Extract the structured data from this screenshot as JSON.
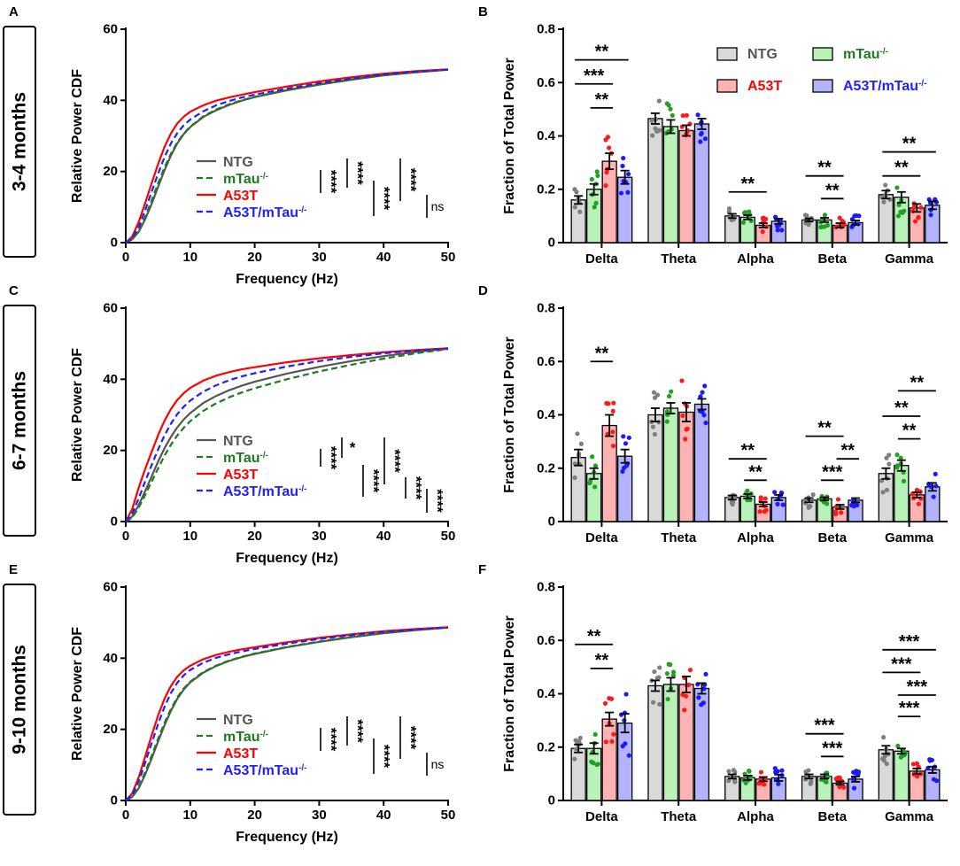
{
  "groups": [
    {
      "name": "NTG",
      "color": "#555555",
      "fill": "#d9d9d9",
      "dot": "#7f7f7f"
    },
    {
      "name": "mTau-/-",
      "base": "mTau",
      "sup": "-/-",
      "color": "#1f7a1f",
      "fill": "#b9f2b9",
      "dot": "#22a022"
    },
    {
      "name": "A53T",
      "color": "#ff0000",
      "fill": "#ffb3b3",
      "dot": "#ff1a1a"
    },
    {
      "name": "A53T/mTau-/-",
      "base": "A53T/mTau",
      "sup": "-/-",
      "color": "#1f1fff",
      "fill": "#b3b3ff",
      "dot": "#1a1aff"
    }
  ],
  "rows": [
    {
      "age_label": "3-4 months",
      "cdf_panel": "A",
      "bar_panel": "B"
    },
    {
      "age_label": "6-7 months",
      "cdf_panel": "C",
      "bar_panel": "D"
    },
    {
      "age_label": "9-10 months",
      "cdf_panel": "E",
      "bar_panel": "F"
    }
  ],
  "chart_data": [
    {
      "panel": "A",
      "type": "line",
      "xlabel": "Frequency (Hz)",
      "ylabel": "Relative Power CDF",
      "xlim": [
        0,
        50
      ],
      "ylim": [
        0,
        60
      ],
      "xticks": [
        0,
        10,
        20,
        30,
        40,
        50
      ],
      "yticks": [
        0,
        20,
        40,
        60
      ],
      "x": [
        0,
        1,
        2,
        3,
        4,
        5,
        6,
        7,
        8,
        9,
        10,
        12,
        14,
        16,
        18,
        20,
        25,
        30,
        35,
        40,
        45,
        50
      ],
      "series": [
        {
          "name": "NTG",
          "values": [
            0,
            0.9,
            3,
            6.5,
            10.8,
            15.6,
            20.3,
            24.5,
            27.9,
            30.5,
            32.5,
            35.3,
            37.2,
            38.7,
            39.9,
            40.9,
            42.8,
            44.4,
            45.8,
            47,
            47.9,
            48.6
          ]
        },
        {
          "name": "mTau-/-",
          "values": [
            0,
            1,
            3.5,
            7.3,
            11.8,
            16.6,
            21.1,
            25,
            28.2,
            30.7,
            32.6,
            35.5,
            37.4,
            38.9,
            40,
            41,
            42.9,
            44.5,
            45.9,
            47.1,
            48,
            48.6
          ]
        },
        {
          "name": "A53T",
          "values": [
            0,
            1.7,
            5.8,
            11,
            16.6,
            22,
            26.9,
            30.7,
            33.5,
            35.4,
            36.8,
            38.6,
            39.9,
            40.8,
            41.6,
            42.3,
            43.9,
            45.3,
            46.5,
            47.5,
            48.2,
            48.7
          ]
        },
        {
          "name": "A53T/mTau-/-",
          "values": [
            0,
            1.3,
            4.4,
            9,
            14.2,
            19.3,
            24,
            27.9,
            30.8,
            33,
            34.6,
            36.9,
            38.6,
            39.8,
            40.8,
            41.6,
            43.3,
            44.8,
            46.1,
            47.3,
            48.1,
            48.7
          ]
        }
      ],
      "stats": [
        {
          "label": "****",
          "pos": 0
        },
        {
          "label": "****",
          "pos": 1
        },
        {
          "label": "****",
          "pos": 2
        },
        {
          "label": "****",
          "pos": 3
        },
        {
          "label": "ns",
          "pos": 4
        }
      ]
    },
    {
      "panel": "B",
      "type": "bar",
      "ylabel": "Fraction of Total Power",
      "ylim": [
        0,
        0.8
      ],
      "yticks": [
        0,
        0.2,
        0.4,
        0.6,
        0.8
      ],
      "categories": [
        "Delta",
        "Theta",
        "Alpha",
        "Beta",
        "Gamma"
      ],
      "series": [
        {
          "name": "NTG",
          "values": [
            0.16,
            0.465,
            0.1,
            0.085,
            0.18
          ],
          "sem": [
            0.015,
            0.02,
            0.008,
            0.006,
            0.015
          ]
        },
        {
          "name": "mTau-/-",
          "values": [
            0.2,
            0.435,
            0.095,
            0.085,
            0.17
          ],
          "sem": [
            0.02,
            0.025,
            0.008,
            0.008,
            0.02
          ]
        },
        {
          "name": "A53T",
          "values": [
            0.305,
            0.42,
            0.065,
            0.065,
            0.13
          ],
          "sem": [
            0.03,
            0.02,
            0.008,
            0.008,
            0.015
          ]
        },
        {
          "name": "A53T/mTau-/-",
          "values": [
            0.245,
            0.445,
            0.08,
            0.075,
            0.14
          ],
          "sem": [
            0.025,
            0.02,
            0.01,
            0.008,
            0.015
          ]
        }
      ],
      "significance": [
        {
          "label": "**",
          "cat": 0,
          "from": 0,
          "to": 3,
          "y": 0.685
        },
        {
          "label": "***",
          "cat": 0,
          "from": 0,
          "to": 2,
          "y": 0.595
        },
        {
          "label": "**",
          "cat": 0,
          "from": 1,
          "to": 2,
          "y": 0.505
        },
        {
          "label": "**",
          "cat": 2,
          "from": 0,
          "to": 2,
          "y": 0.19
        },
        {
          "label": "**",
          "cat": 3,
          "from": 0,
          "to": 2,
          "y": 0.25
        },
        {
          "label": "**",
          "cat": 3,
          "from": 1,
          "to": 2,
          "y": 0.165
        },
        {
          "label": "**",
          "cat": 4,
          "from": 0,
          "to": 3,
          "y": 0.34
        },
        {
          "label": "**",
          "cat": 4,
          "from": 0,
          "to": 2,
          "y": 0.25
        }
      ]
    },
    {
      "panel": "C",
      "type": "line",
      "xlabel": "Frequency (Hz)",
      "ylabel": "Relative Power CDF",
      "xlim": [
        0,
        50
      ],
      "ylim": [
        0,
        60
      ],
      "xticks": [
        0,
        10,
        20,
        30,
        40,
        50
      ],
      "yticks": [
        0,
        20,
        40,
        60
      ],
      "x": [
        0,
        1,
        2,
        3,
        4,
        5,
        6,
        7,
        8,
        9,
        10,
        12,
        14,
        16,
        18,
        20,
        25,
        30,
        35,
        40,
        45,
        50
      ],
      "series": [
        {
          "name": "NTG",
          "values": [
            0,
            1.4,
            4.6,
            8.5,
            12.6,
            16.8,
            20.6,
            23.8,
            26.5,
            28.7,
            30.5,
            33.3,
            35.3,
            36.9,
            38.2,
            39.3,
            41.6,
            43.5,
            45.1,
            46.5,
            47.7,
            48.6
          ]
        },
        {
          "name": "mTau-/-",
          "values": [
            0,
            1.1,
            3.9,
            7.4,
            11.1,
            14.9,
            18.5,
            21.6,
            24.2,
            26.4,
            28.2,
            31.1,
            33.2,
            34.9,
            36.3,
            37.5,
            40,
            42.2,
            44.1,
            45.8,
            47.3,
            48.5
          ]
        },
        {
          "name": "A53T",
          "values": [
            0,
            3.5,
            9.5,
            14.7,
            19.5,
            24.2,
            28.3,
            31.6,
            34.2,
            36.1,
            37.6,
            39.6,
            41,
            42,
            42.8,
            43.4,
            44.8,
            45.9,
            46.8,
            47.6,
            48.2,
            48.7
          ]
        },
        {
          "name": "A53T/mTau-/-",
          "values": [
            0,
            2.2,
            6.5,
            11.2,
            15.8,
            20.2,
            24.2,
            27.5,
            30.2,
            32.3,
            34,
            36.5,
            38.3,
            39.7,
            40.8,
            41.7,
            43.6,
            45.1,
            46.3,
            47.3,
            48.1,
            48.7
          ]
        }
      ],
      "stats": [
        {
          "label": "****",
          "pos": 0
        },
        {
          "label": "*",
          "pos": 1
        },
        {
          "label": "****",
          "pos": 2
        },
        {
          "label": "****",
          "pos": 3
        },
        {
          "label": "****",
          "pos": 4
        },
        {
          "label": "****",
          "pos": 5
        }
      ]
    },
    {
      "panel": "D",
      "type": "bar",
      "ylabel": "Fraction of Total Power",
      "ylim": [
        0,
        0.8
      ],
      "yticks": [
        0,
        0.2,
        0.4,
        0.6,
        0.8
      ],
      "categories": [
        "Delta",
        "Theta",
        "Alpha",
        "Beta",
        "Gamma"
      ],
      "series": [
        {
          "name": "NTG",
          "values": [
            0.24,
            0.4,
            0.09,
            0.08,
            0.18
          ],
          "sem": [
            0.03,
            0.025,
            0.008,
            0.008,
            0.02
          ]
        },
        {
          "name": "mTau-/-",
          "values": [
            0.18,
            0.425,
            0.095,
            0.085,
            0.21
          ],
          "sem": [
            0.02,
            0.02,
            0.008,
            0.006,
            0.02
          ]
        },
        {
          "name": "A53T",
          "values": [
            0.36,
            0.41,
            0.065,
            0.055,
            0.1
          ],
          "sem": [
            0.04,
            0.035,
            0.008,
            0.008,
            0.01
          ]
        },
        {
          "name": "A53T/mTau-/-",
          "values": [
            0.245,
            0.44,
            0.09,
            0.08,
            0.13
          ],
          "sem": [
            0.025,
            0.02,
            0.01,
            0.008,
            0.015
          ]
        }
      ],
      "significance": [
        {
          "label": "**",
          "cat": 0,
          "from": 1,
          "to": 2,
          "y": 0.6
        },
        {
          "label": "**",
          "cat": 2,
          "from": 0,
          "to": 2,
          "y": 0.235
        },
        {
          "label": "**",
          "cat": 2,
          "from": 1,
          "to": 2,
          "y": 0.155
        },
        {
          "label": "**",
          "cat": 3,
          "from": 0,
          "to": 2,
          "y": 0.32
        },
        {
          "label": "***",
          "cat": 3,
          "from": 1,
          "to": 2,
          "y": 0.155
        },
        {
          "label": "**",
          "cat": 3,
          "from": 2,
          "to": 3,
          "y": 0.235
        },
        {
          "label": "**",
          "cat": 4,
          "from": 1,
          "to": 3,
          "y": 0.49
        },
        {
          "label": "**",
          "cat": 4,
          "from": 0,
          "to": 2,
          "y": 0.395
        },
        {
          "label": "**",
          "cat": 4,
          "from": 1,
          "to": 2,
          "y": 0.31
        }
      ]
    },
    {
      "panel": "E",
      "type": "line",
      "xlabel": "Frequency (Hz)",
      "ylabel": "Relative Power CDF",
      "xlim": [
        0,
        50
      ],
      "ylim": [
        0,
        60
      ],
      "xticks": [
        0,
        10,
        20,
        30,
        40,
        50
      ],
      "yticks": [
        0,
        20,
        40,
        60
      ],
      "x": [
        0,
        1,
        2,
        3,
        4,
        5,
        6,
        7,
        8,
        9,
        10,
        12,
        14,
        16,
        18,
        20,
        25,
        30,
        35,
        40,
        45,
        50
      ],
      "series": [
        {
          "name": "NTG",
          "values": [
            0,
            1,
            3.4,
            7.2,
            11.7,
            16.5,
            21.1,
            25.2,
            28.6,
            31.2,
            33.2,
            35.9,
            37.8,
            39.2,
            40.3,
            41.2,
            43.1,
            44.6,
            45.9,
            47,
            47.9,
            48.6
          ]
        },
        {
          "name": "mTau-/-",
          "values": [
            0,
            1.1,
            3.8,
            7.9,
            12.5,
            17.3,
            21.8,
            25.7,
            29,
            31.5,
            33.4,
            36.1,
            37.9,
            39.3,
            40.4,
            41.3,
            43.2,
            44.7,
            46,
            47.1,
            48,
            48.6
          ]
        },
        {
          "name": "A53T",
          "values": [
            0,
            2,
            6.5,
            12.2,
            18.2,
            23.8,
            28.6,
            32.2,
            34.8,
            36.6,
            37.9,
            39.7,
            40.9,
            41.8,
            42.5,
            43.1,
            44.5,
            45.7,
            46.7,
            47.6,
            48.2,
            48.7
          ]
        },
        {
          "name": "A53T/mTau-/-",
          "values": [
            0,
            1.6,
            5.3,
            10.5,
            16,
            21.4,
            26.3,
            30.2,
            33.1,
            35.2,
            36.7,
            38.7,
            40.1,
            41.1,
            41.9,
            42.6,
            44.1,
            45.4,
            46.5,
            47.4,
            48.1,
            48.7
          ]
        }
      ],
      "stats": [
        {
          "label": "****",
          "pos": 0
        },
        {
          "label": "****",
          "pos": 1
        },
        {
          "label": "****",
          "pos": 2
        },
        {
          "label": "****",
          "pos": 3
        },
        {
          "label": "ns",
          "pos": 4
        }
      ]
    },
    {
      "panel": "F",
      "type": "bar",
      "ylabel": "Fraction of Total Power",
      "ylim": [
        0,
        0.8
      ],
      "yticks": [
        0,
        0.2,
        0.4,
        0.6,
        0.8
      ],
      "categories": [
        "Delta",
        "Theta",
        "Alpha",
        "Beta",
        "Gamma"
      ],
      "series": [
        {
          "name": "NTG",
          "values": [
            0.195,
            0.43,
            0.09,
            0.09,
            0.19
          ],
          "sem": [
            0.015,
            0.02,
            0.008,
            0.008,
            0.015
          ]
        },
        {
          "name": "mTau-/-",
          "values": [
            0.195,
            0.435,
            0.085,
            0.09,
            0.185
          ],
          "sem": [
            0.02,
            0.025,
            0.008,
            0.008,
            0.01
          ]
        },
        {
          "name": "A53T",
          "values": [
            0.305,
            0.435,
            0.08,
            0.065,
            0.11
          ],
          "sem": [
            0.025,
            0.03,
            0.008,
            0.006,
            0.01
          ]
        },
        {
          "name": "A53T/mTau-/-",
          "values": [
            0.29,
            0.42,
            0.085,
            0.08,
            0.115
          ],
          "sem": [
            0.035,
            0.02,
            0.012,
            0.01,
            0.012
          ]
        }
      ],
      "significance": [
        {
          "label": "**",
          "cat": 0,
          "from": 0,
          "to": 2,
          "y": 0.585
        },
        {
          "label": "**",
          "cat": 0,
          "from": 1,
          "to": 2,
          "y": 0.495
        },
        {
          "label": "***",
          "cat": 3,
          "from": 0,
          "to": 2,
          "y": 0.25
        },
        {
          "label": "***",
          "cat": 3,
          "from": 1,
          "to": 2,
          "y": 0.165
        },
        {
          "label": "***",
          "cat": 4,
          "from": 0,
          "to": 3,
          "y": 0.565
        },
        {
          "label": "***",
          "cat": 4,
          "from": 0,
          "to": 2,
          "y": 0.48
        },
        {
          "label": "***",
          "cat": 4,
          "from": 1,
          "to": 3,
          "y": 0.395
        },
        {
          "label": "***",
          "cat": 4,
          "from": 1,
          "to": 2,
          "y": 0.315
        }
      ]
    }
  ]
}
